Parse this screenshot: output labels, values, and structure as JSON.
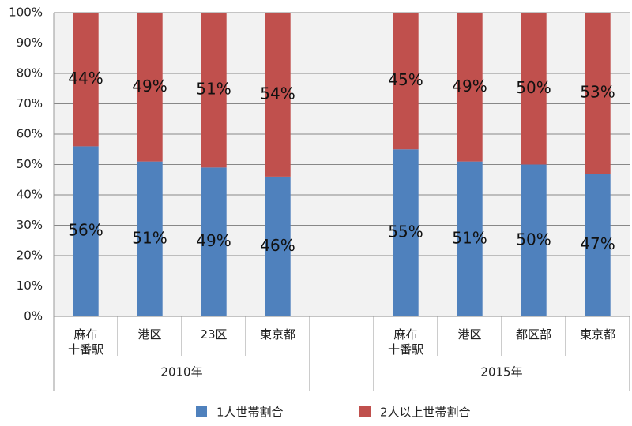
{
  "chart_data": {
    "type": "stacked_bar",
    "categories": [
      "麻布\n十番駅",
      "港区",
      "23区",
      "東京都",
      null,
      "麻布\n十番駅",
      "港区",
      "都区部",
      "東京都"
    ],
    "category_groups": [
      "2010年",
      "2015年"
    ],
    "series": [
      {
        "name": "1人世帯割合",
        "color": "#4f81bd",
        "values": [
          56,
          51,
          49,
          46,
          null,
          55,
          51,
          50,
          47
        ],
        "value_labels": [
          "56%",
          "51%",
          "49%",
          "46%",
          null,
          "55%",
          "51%",
          "50%",
          "47%"
        ]
      },
      {
        "name": "2人以上世帯割合",
        "color": "#c0504d",
        "values": [
          44,
          49,
          51,
          54,
          null,
          45,
          49,
          50,
          53
        ],
        "value_labels": [
          "44%",
          "49%",
          "51%",
          "54%",
          null,
          "45%",
          "49%",
          "50%",
          "53%"
        ]
      }
    ],
    "ylim": [
      0,
      100
    ],
    "yticks": [
      {
        "value": 0,
        "label": "0%"
      },
      {
        "value": 10,
        "label": "10%"
      },
      {
        "value": 20,
        "label": "20%"
      },
      {
        "value": 30,
        "label": "30%"
      },
      {
        "value": 40,
        "label": "40%"
      },
      {
        "value": 50,
        "label": "50%"
      },
      {
        "value": 60,
        "label": "60%"
      },
      {
        "value": 70,
        "label": "70%"
      },
      {
        "value": 80,
        "label": "80%"
      },
      {
        "value": 90,
        "label": "90%"
      },
      {
        "value": 100,
        "label": "100%"
      }
    ],
    "grid": true,
    "legend": "bottom"
  }
}
